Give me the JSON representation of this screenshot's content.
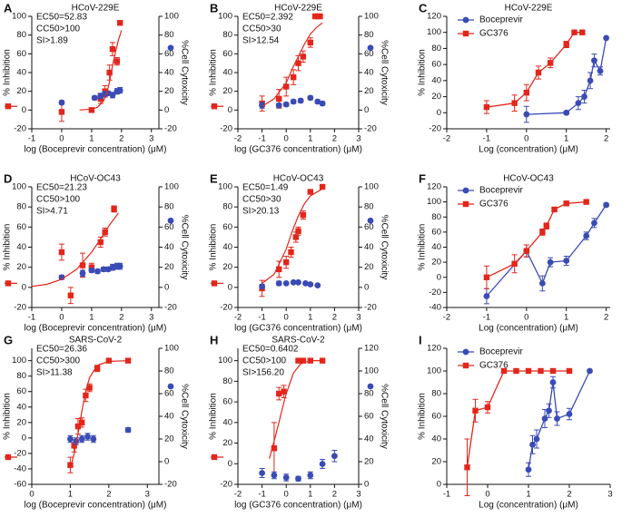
{
  "chart_data": [
    {
      "type": "scatter",
      "panel": "A",
      "title": "HCoV-229E",
      "annotation": [
        "EC50=52.83",
        "CC50>100",
        "SI>1.89"
      ],
      "xlabel": "log (Boceprevir concentration) (μM)",
      "ylabel": "% Inhibition",
      "y2label": "%Cell Cytoxicity",
      "xlim": [
        -1,
        3.25
      ],
      "xticks": [
        -1,
        0,
        1,
        2,
        3
      ],
      "ylim": [
        -20,
        100
      ],
      "yticks": [
        -20,
        0,
        20,
        40,
        60,
        80,
        100
      ],
      "y2lim": [
        -20,
        100
      ],
      "y2ticks": [
        -20,
        0,
        20,
        40,
        60,
        80,
        100
      ],
      "series": [
        {
          "color": "#e3261b",
          "marker": "square",
          "x": [
            0,
            1,
            1.3,
            1.45,
            1.6,
            1.7,
            1.85,
            1.95
          ],
          "values": [
            -2,
            0,
            12,
            20,
            40,
            65,
            52,
            93
          ],
          "errors": [
            10,
            2,
            5,
            6,
            8,
            7,
            4,
            0
          ]
        },
        {
          "color": "#3a4bb5",
          "marker": "circle",
          "axis": "y2",
          "x": [
            0,
            1.1,
            1.3,
            1.45,
            1.55,
            1.7,
            1.85,
            1.95
          ],
          "values": [
            8,
            13,
            15,
            17,
            18,
            16,
            20,
            21
          ],
          "errors": [
            2,
            2,
            3,
            3,
            2,
            3,
            3,
            3
          ]
        },
        {
          "color": "#e3261b",
          "style": "fit",
          "x": [
            0.6,
            1,
            1.2,
            1.4,
            1.5,
            1.6,
            1.7,
            1.8,
            1.9,
            2
          ],
          "values": [
            0,
            1,
            3,
            10,
            17,
            30,
            47,
            62,
            75,
            85
          ]
        }
      ]
    },
    {
      "type": "scatter",
      "panel": "B",
      "title": "HCoV-229E",
      "annotation": [
        "EC50=2.392",
        "CC50>30",
        "SI>12.54"
      ],
      "xlabel": "log (GC376 concentration) (μM)",
      "ylabel": "% Inhibition",
      "y2label": "%Cell Cytoxicity",
      "xlim": [
        -2,
        3
      ],
      "xticks": [
        -2,
        -1,
        0,
        1,
        2,
        3
      ],
      "ylim": [
        -20,
        100
      ],
      "yticks": [
        -20,
        0,
        20,
        40,
        60,
        80,
        100
      ],
      "y2lim": [
        -20,
        100
      ],
      "y2ticks": [
        -20,
        0,
        20,
        40,
        60,
        80,
        100
      ],
      "series": [
        {
          "color": "#e3261b",
          "marker": "square",
          "x": [
            -1,
            -0.3,
            0,
            0.3,
            0.5,
            0.7,
            1,
            1.2,
            1.3,
            1.4
          ],
          "values": [
            7,
            12,
            25,
            35,
            50,
            57,
            72,
            100,
            100,
            100
          ],
          "errors": [
            8,
            10,
            10,
            8,
            8,
            6,
            5,
            0,
            0,
            0
          ]
        },
        {
          "color": "#3a4bb5",
          "marker": "circle",
          "axis": "y2",
          "x": [
            -1,
            -0.3,
            0,
            0.3,
            0.6,
            1,
            1.3,
            1.5
          ],
          "values": [
            5,
            5,
            6,
            9,
            10,
            13,
            9,
            7
          ],
          "errors": [
            3,
            2,
            2,
            2,
            2,
            2,
            2,
            2
          ]
        },
        {
          "color": "#e3261b",
          "style": "fit",
          "x": [
            -1,
            -0.5,
            0,
            0.25,
            0.5,
            0.75,
            1,
            1.25,
            1.5
          ],
          "values": [
            4,
            12,
            29,
            44,
            57,
            70,
            81,
            88,
            93
          ]
        }
      ]
    },
    {
      "type": "line",
      "panel": "C",
      "title": "HCoV-229E",
      "xlabel": "Log (concentration) (μM)",
      "ylabel": "% Inhibition",
      "xlim": [
        -2,
        2.1
      ],
      "xticks": [
        -2,
        -1,
        0,
        1,
        2
      ],
      "ylim": [
        -20,
        120
      ],
      "yticks": [
        -20,
        0,
        20,
        40,
        60,
        80,
        100,
        120
      ],
      "series": [
        {
          "name": "Boceprevir",
          "color": "#3a4bb5",
          "marker": "circle",
          "x": [
            0,
            1,
            1.3,
            1.45,
            1.6,
            1.7,
            1.85,
            2
          ],
          "values": [
            -2,
            0,
            12,
            20,
            40,
            65,
            52,
            93
          ],
          "errors": [
            10,
            2,
            8,
            8,
            10,
            8,
            5,
            0
          ]
        },
        {
          "name": "GC376",
          "color": "#e3261b",
          "marker": "square",
          "x": [
            -1,
            -0.3,
            0,
            0.3,
            0.6,
            1,
            1.2,
            1.4
          ],
          "values": [
            7,
            12,
            25,
            50,
            62,
            85,
            100,
            100
          ],
          "errors": [
            8,
            10,
            10,
            8,
            6,
            4,
            0,
            0
          ]
        }
      ]
    },
    {
      "type": "scatter",
      "panel": "D",
      "title": "HCoV-OC43",
      "annotation": [
        "EC50=21.23",
        "CC50>100",
        "SI>4.71"
      ],
      "xlabel": "log (Boceprevir concentration) (μM)",
      "ylabel": "% Inhibition",
      "y2label": "%Cell Cytoxicity",
      "xlim": [
        -1,
        3.25
      ],
      "xticks": [
        -1,
        0,
        1,
        2,
        3
      ],
      "ylim": [
        -20,
        100
      ],
      "yticks": [
        -20,
        0,
        20,
        40,
        60,
        80,
        100
      ],
      "y2lim": [
        -20,
        100
      ],
      "y2ticks": [
        -20,
        0,
        20,
        40,
        60,
        80,
        100
      ],
      "series": [
        {
          "color": "#e3261b",
          "marker": "square",
          "x": [
            0,
            0.3,
            0.7,
            1,
            1.3,
            1.45,
            1.75
          ],
          "values": [
            35,
            -8,
            22,
            20,
            45,
            55,
            78
          ],
          "errors": [
            8,
            8,
            12,
            4,
            5,
            4,
            3
          ]
        },
        {
          "color": "#3a4bb5",
          "marker": "circle",
          "axis": "y2",
          "x": [
            0,
            0.7,
            1,
            1.2,
            1.4,
            1.55,
            1.7,
            1.85,
            1.95
          ],
          "values": [
            10,
            14,
            17,
            16,
            18,
            18,
            20,
            21,
            21
          ],
          "errors": [
            2,
            3,
            2,
            2,
            2,
            2,
            3,
            3,
            3
          ]
        },
        {
          "color": "#e3261b",
          "style": "fit",
          "x": [
            -1,
            -0.5,
            0,
            0.5,
            1,
            1.3,
            1.6,
            1.9
          ],
          "values": [
            1,
            3,
            8,
            18,
            35,
            48,
            62,
            74
          ]
        }
      ]
    },
    {
      "type": "scatter",
      "panel": "E",
      "title": "HCoV-OC43",
      "annotation": [
        "EC50=1.49",
        "CC50>30",
        "SI>20.13"
      ],
      "xlabel": "log (GC376 concentration) (μM)",
      "ylabel": "% Inhibition",
      "y2label": "%Cell Cytoxicity",
      "xlim": [
        -2,
        3
      ],
      "xticks": [
        -2,
        -1,
        0,
        1,
        2,
        3
      ],
      "ylim": [
        -20,
        100
      ],
      "yticks": [
        -20,
        0,
        20,
        40,
        60,
        80,
        100
      ],
      "y2lim": [
        -20,
        100
      ],
      "y2ticks": [
        -20,
        0,
        20,
        40,
        60,
        80,
        100
      ],
      "series": [
        {
          "color": "#e3261b",
          "marker": "square",
          "x": [
            -1,
            -0.3,
            0,
            0.2,
            0.4,
            0.5,
            0.7,
            1,
            1.5
          ],
          "values": [
            -1,
            18,
            25,
            35,
            50,
            56,
            72,
            95,
            100
          ],
          "errors": [
            8,
            8,
            6,
            5,
            5,
            4,
            4,
            0,
            0
          ]
        },
        {
          "color": "#3a4bb5",
          "marker": "circle",
          "axis": "y2",
          "x": [
            -1,
            -0.3,
            0,
            0.3,
            0.5,
            0.8,
            1,
            1.3
          ],
          "values": [
            1,
            4,
            4,
            5,
            5,
            4,
            3,
            2
          ],
          "errors": [
            2,
            2,
            1,
            1,
            1,
            1,
            1,
            1
          ]
        },
        {
          "color": "#e3261b",
          "style": "fit",
          "x": [
            -1,
            -0.5,
            0,
            0.25,
            0.5,
            0.75,
            1,
            1.5
          ],
          "values": [
            4,
            13,
            38,
            56,
            71,
            83,
            91,
            98
          ]
        }
      ]
    },
    {
      "type": "line",
      "panel": "F",
      "title": "HCoV-OC43",
      "xlabel": "Log (concentration) (μM)",
      "ylabel": "% Inhibition",
      "xlim": [
        -2,
        2.1
      ],
      "xticks": [
        -2,
        -1,
        0,
        1,
        2
      ],
      "ylim": [
        -40,
        120
      ],
      "yticks": [
        -40,
        -20,
        0,
        20,
        40,
        60,
        80,
        100,
        120
      ],
      "series": [
        {
          "name": "Boceprevir",
          "color": "#3a4bb5",
          "marker": "circle",
          "x": [
            -1,
            0,
            0.4,
            0.6,
            1,
            1.5,
            1.7,
            2
          ],
          "values": [
            -25,
            35,
            -8,
            20,
            22,
            55,
            72,
            96
          ],
          "errors": [
            10,
            8,
            10,
            6,
            6,
            5,
            6,
            2
          ]
        },
        {
          "name": "GC376",
          "color": "#e3261b",
          "marker": "square",
          "x": [
            -1,
            -0.3,
            0,
            0.4,
            0.5,
            0.7,
            1,
            1.5
          ],
          "values": [
            0,
            18,
            35,
            60,
            68,
            90,
            98,
            100
          ],
          "errors": [
            15,
            12,
            8,
            4,
            4,
            3,
            1,
            0
          ]
        }
      ]
    },
    {
      "type": "scatter",
      "panel": "G",
      "title": "SARS-CoV-2",
      "annotation": [
        "EC50=26.36",
        "CC50>300",
        "SI>11.38"
      ],
      "xlabel": "log (Boceprevir concentration) (μM)",
      "ylabel": "% Inhibition",
      "y2label": "%Cell Cytoxicity",
      "xlim": [
        0,
        3.3
      ],
      "xticks": [
        0,
        1,
        2,
        3
      ],
      "ylim": [
        -60,
        116
      ],
      "yticks": [
        -60,
        -40,
        -20,
        0,
        20,
        40,
        60,
        80,
        100
      ],
      "y2lim": [
        -20,
        100
      ],
      "y2ticks": [
        -20,
        0,
        20,
        40,
        60,
        80,
        100
      ],
      "series": [
        {
          "color": "#e3261b",
          "marker": "square",
          "x": [
            1,
            1.1,
            1.2,
            1.3,
            1.4,
            1.5,
            1.7,
            2,
            2.5
          ],
          "values": [
            -35,
            -10,
            15,
            20,
            55,
            65,
            90,
            100,
            100
          ],
          "errors": [
            10,
            8,
            10,
            6,
            8,
            5,
            4,
            2,
            0
          ]
        },
        {
          "color": "#3a4bb5",
          "marker": "circle",
          "axis": "y2",
          "x": [
            1,
            1.15,
            1.3,
            1.45,
            1.6,
            2.5
          ],
          "values": [
            20,
            18,
            20,
            22,
            20,
            28
          ],
          "errors": [
            3,
            3,
            3,
            3,
            3,
            2
          ]
        },
        {
          "color": "#e3261b",
          "style": "fit",
          "x": [
            1,
            1.1,
            1.2,
            1.3,
            1.4,
            1.5,
            1.7,
            2,
            2.5
          ],
          "values": [
            -40,
            -20,
            5,
            35,
            60,
            78,
            94,
            99,
            100
          ]
        }
      ]
    },
    {
      "type": "scatter",
      "panel": "H",
      "title": "SARS-CoV-2",
      "annotation": [
        "EC50=0.6402",
        "CC50>100",
        "SI>156.20"
      ],
      "xlabel": "log (GC376 concentration) (μM)",
      "ylabel": "% Inhibition",
      "y2label": "%Cell Cytoxicity",
      "xlim": [
        -2,
        3
      ],
      "xticks": [
        -2,
        -1,
        0,
        1,
        2,
        3
      ],
      "ylim": [
        -20,
        112
      ],
      "yticks": [
        -20,
        0,
        20,
        40,
        60,
        80,
        100
      ],
      "y2lim": [
        0,
        120
      ],
      "y2ticks": [
        0,
        20,
        40,
        60,
        80,
        100,
        120
      ],
      "series": [
        {
          "color": "#e3261b",
          "marker": "square",
          "x": [
            -0.5,
            -0.3,
            -0.1,
            0.5,
            0.7,
            1,
            1.5
          ],
          "values": [
            15,
            68,
            70,
            100,
            100,
            100,
            100
          ],
          "errors": [
            25,
            6,
            6,
            0,
            0,
            0,
            0
          ]
        },
        {
          "color": "#3a4bb5",
          "marker": "circle",
          "axis": "y2",
          "x": [
            -1,
            -0.5,
            0,
            0.5,
            1,
            1.5,
            2
          ],
          "values": [
            10,
            8,
            6,
            5,
            8,
            18,
            25
          ],
          "errors": [
            4,
            3,
            3,
            2,
            3,
            4,
            5
          ]
        },
        {
          "color": "#e3261b",
          "style": "fit",
          "x": [
            -0.7,
            -0.5,
            -0.3,
            -0.2,
            0,
            0.3,
            0.6,
            1,
            1.5
          ],
          "values": [
            5,
            22,
            40,
            50,
            68,
            88,
            97,
            100,
            100
          ]
        }
      ]
    },
    {
      "type": "line",
      "panel": "I",
      "xlabel": "Log (concentration) (μM)",
      "ylabel": "% Inhibition",
      "xlim": [
        -1,
        3
      ],
      "xticks": [
        -1,
        0,
        1,
        2,
        3
      ],
      "ylim": [
        0,
        120
      ],
      "yticks": [
        0,
        20,
        40,
        60,
        80,
        100,
        120
      ],
      "series": [
        {
          "name": "Boceprevir",
          "color": "#3a4bb5",
          "marker": "circle",
          "x": [
            1,
            1.1,
            1.2,
            1.4,
            1.5,
            1.6,
            1.7,
            2,
            2.5
          ],
          "values": [
            13,
            35,
            40,
            58,
            65,
            90,
            58,
            62,
            100
          ],
          "errors": [
            6,
            8,
            8,
            8,
            6,
            5,
            6,
            5,
            0
          ]
        },
        {
          "name": "GC376",
          "color": "#e3261b",
          "marker": "square",
          "x": [
            -0.5,
            -0.3,
            0,
            0.4,
            0.7,
            1,
            1.3,
            1.6,
            2
          ],
          "values": [
            15,
            65,
            68,
            100,
            100,
            100,
            100,
            100,
            100
          ],
          "errors": [
            25,
            10,
            5,
            0,
            0,
            0,
            0,
            0,
            0
          ]
        }
      ]
    }
  ]
}
